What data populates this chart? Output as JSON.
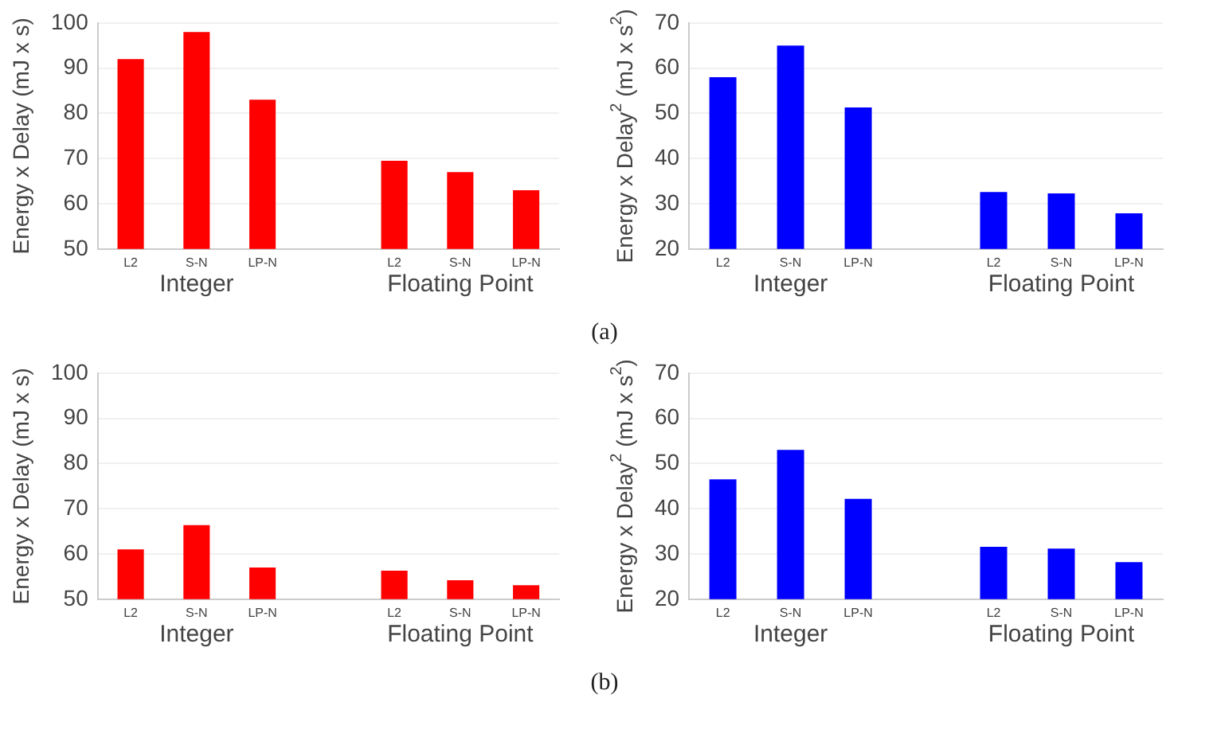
{
  "chart_data": [
    {
      "type": "bar",
      "ylabel": "Energy x Delay (mJ x s)",
      "categories": [
        "L2",
        "S-N",
        "LP-N",
        null,
        "L2",
        "S-N",
        "LP-N"
      ],
      "values": [
        92,
        98,
        83,
        null,
        69.5,
        67,
        63
      ],
      "color": "#ff0000",
      "ylim": [
        50,
        100
      ],
      "yticks": [
        50,
        60,
        70,
        80,
        90,
        100
      ],
      "grid": "y",
      "annotations": [
        "Integer",
        "Floating Point"
      ]
    },
    {
      "type": "bar",
      "ylabel": "Energy x Delay$^{2}$ (mJ x s$^{2}$)",
      "categories": [
        "L2",
        "S-N",
        "LP-N",
        null,
        "L2",
        "S-N",
        "LP-N"
      ],
      "values": [
        58,
        65,
        51.3,
        null,
        32.6,
        32.3,
        27.9
      ],
      "color": "#0000ff",
      "ylim": [
        20,
        70
      ],
      "yticks": [
        20,
        30,
        40,
        50,
        60,
        70
      ],
      "grid": "y",
      "annotations": [
        "Integer",
        "Floating Point",
        "(a)"
      ]
    },
    {
      "type": "bar",
      "ylabel": "Energy x Delay (mJ x s)",
      "categories": [
        "L2",
        "S-N",
        "LP-N",
        null,
        "L2",
        "S-N",
        "LP-N"
      ],
      "values": [
        61,
        66.4,
        57,
        null,
        56.3,
        54.2,
        53.1
      ],
      "color": "#ff0000",
      "ylim": [
        50,
        100
      ],
      "yticks": [
        50,
        60,
        70,
        80,
        90,
        100
      ],
      "grid": "y",
      "annotations": [
        "Integer",
        "Floating Point"
      ]
    },
    {
      "type": "bar",
      "ylabel": "Energy x Delay$^{2}$ (mJ x s$^{2}$)",
      "categories": [
        "L2",
        "S-N",
        "LP-N",
        null,
        "L2",
        "S-N",
        "LP-N"
      ],
      "values": [
        46.5,
        53,
        42.2,
        null,
        31.6,
        31.2,
        28.2
      ],
      "color": "#0000ff",
      "ylim": [
        20,
        70
      ],
      "yticks": [
        20,
        30,
        40,
        50,
        60,
        70
      ],
      "grid": "y",
      "annotations": [
        "Integer",
        "Floating Point",
        "(b)"
      ]
    }
  ]
}
